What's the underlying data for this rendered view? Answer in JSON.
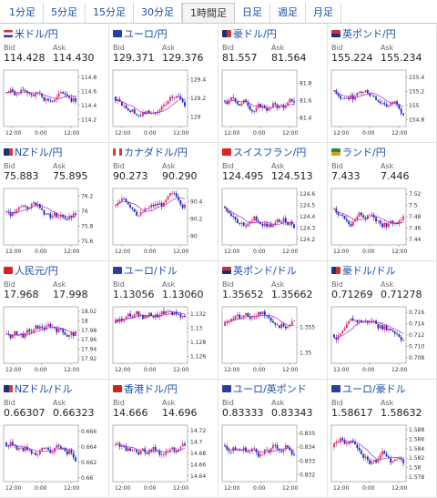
{
  "timeframe_tabs": [
    {
      "label": "1分足"
    },
    {
      "label": "5分足"
    },
    {
      "label": "15分足"
    },
    {
      "label": "30分足"
    },
    {
      "label": "1時間足",
      "active": true
    },
    {
      "label": "日足"
    },
    {
      "label": "週足"
    },
    {
      "label": "月足"
    }
  ],
  "labels": {
    "bid": "Bid",
    "ask": "Ask"
  },
  "colors": {
    "link": "#1a4fa8",
    "up_candle": "#e0306a",
    "down_candle": "#1a2ac0",
    "moving_average": "#b020d0"
  },
  "pairs": [
    {
      "name": "米ドル/円",
      "flag": "us",
      "bid": "114.428",
      "ask": "114.430"
    },
    {
      "name": "ユーロ/円",
      "flag": "eu",
      "bid": "129.371",
      "ask": "129.376"
    },
    {
      "name": "豪ドル/円",
      "flag": "au",
      "bid": "81.557",
      "ask": "81.564"
    },
    {
      "name": "英ポンド/円",
      "flag": "gb",
      "bid": "155.224",
      "ask": "155.234"
    },
    {
      "name": "NZドル/円",
      "flag": "nz",
      "bid": "75.883",
      "ask": "75.895"
    },
    {
      "name": "カナダドル/円",
      "flag": "ca",
      "bid": "90.273",
      "ask": "90.290"
    },
    {
      "name": "スイスフラン/円",
      "flag": "ch",
      "bid": "124.495",
      "ask": "124.513"
    },
    {
      "name": "ランド/円",
      "flag": "za",
      "bid": "7.433",
      "ask": "7.446"
    },
    {
      "name": "人民元/円",
      "flag": "cn",
      "bid": "17.968",
      "ask": "17.998"
    },
    {
      "name": "ユーロ/ドル",
      "flag": "eu",
      "bid": "1.13056",
      "ask": "1.13060"
    },
    {
      "name": "英ポンド/ドル",
      "flag": "gb",
      "bid": "1.35652",
      "ask": "1.35662"
    },
    {
      "name": "豪ドル/ドル",
      "flag": "au",
      "bid": "0.71269",
      "ask": "0.71278"
    },
    {
      "name": "NZドル/ドル",
      "flag": "nz",
      "bid": "0.66307",
      "ask": "0.66323"
    },
    {
      "name": "香港ドル/円",
      "flag": "hk",
      "bid": "14.666",
      "ask": "14.696"
    },
    {
      "name": "ユーロ/英ポンド",
      "flag": "eu",
      "bid": "0.83333",
      "ask": "0.83343"
    },
    {
      "name": "ユーロ/豪ドル",
      "flag": "eu",
      "bid": "1.58617",
      "ask": "1.58632"
    }
  ],
  "chart_data": [
    {
      "type": "candlestick",
      "pair": "米ドル/円",
      "x_ticks": [
        "12:00",
        "0:00",
        "12:00"
      ],
      "y_ticks": [
        "114.8",
        "114.6",
        "114.4",
        "114.2"
      ],
      "ylim": [
        114.1,
        114.9
      ]
    },
    {
      "type": "candlestick",
      "pair": "ユーロ/円",
      "x_ticks": [
        "12:00",
        "0:00",
        "12:00"
      ],
      "y_ticks": [
        "129.4",
        "129.2",
        "129"
      ],
      "ylim": [
        128.9,
        129.5
      ]
    },
    {
      "type": "candlestick",
      "pair": "豪ドル/円",
      "x_ticks": [
        "12:00",
        "0:00",
        "12:00"
      ],
      "y_ticks": [
        "81.8",
        "81.6",
        "81.4"
      ],
      "ylim": [
        81.3,
        81.95
      ]
    },
    {
      "type": "candlestick",
      "pair": "英ポンド/円",
      "x_ticks": [
        "12:00",
        "0:00",
        "12:00"
      ],
      "y_ticks": [
        "155.4",
        "155.2",
        "155",
        "154.8"
      ],
      "ylim": [
        154.7,
        155.5
      ]
    },
    {
      "type": "candlestick",
      "pair": "NZドル/円",
      "x_ticks": [
        "12:00",
        "0:00",
        "12:00"
      ],
      "y_ticks": [
        "76.2",
        "76",
        "75.8",
        "75.6"
      ],
      "ylim": [
        75.55,
        76.3
      ]
    },
    {
      "type": "candlestick",
      "pair": "カナダドル/円",
      "x_ticks": [
        "12:00",
        "0:00",
        "12:00"
      ],
      "y_ticks": [
        "90.4",
        "90.2",
        "90"
      ],
      "ylim": [
        89.9,
        90.55
      ]
    },
    {
      "type": "candlestick",
      "pair": "スイスフラン/円",
      "x_ticks": [
        "12:00",
        "0:00",
        "12:00"
      ],
      "y_ticks": [
        "124.6",
        "124.5",
        "124.4",
        "124.3",
        "124.2"
      ],
      "ylim": [
        124.15,
        124.65
      ]
    },
    {
      "type": "candlestick",
      "pair": "ランド/円",
      "x_ticks": [
        "12:00",
        "0:00",
        "12:00"
      ],
      "y_ticks": [
        "7.52",
        "7.5",
        "7.48",
        "7.46",
        "7.44"
      ],
      "ylim": [
        7.43,
        7.53
      ]
    },
    {
      "type": "candlestick",
      "pair": "人民元/円",
      "x_ticks": [
        "12:00",
        "0:00",
        "12:00"
      ],
      "y_ticks": [
        "18.02",
        "18",
        "17.98",
        "17.96",
        "17.94",
        "17.92"
      ],
      "ylim": [
        17.91,
        18.03
      ]
    },
    {
      "type": "candlestick",
      "pair": "ユーロ/ドル",
      "x_ticks": [
        "12:00",
        "0:00",
        "12:00"
      ],
      "y_ticks": [
        "1.132",
        "1.13",
        "1.128",
        "1.126"
      ],
      "ylim": [
        1.125,
        1.133
      ]
    },
    {
      "type": "candlestick",
      "pair": "英ポンド/ドル",
      "x_ticks": [
        "12:00",
        "0:00",
        "12:00"
      ],
      "y_ticks": [
        "1.355",
        "1.35"
      ],
      "ylim": [
        1.348,
        1.359
      ]
    },
    {
      "type": "candlestick",
      "pair": "豪ドル/ドル",
      "x_ticks": [
        "12:00",
        "0:00",
        "12:00"
      ],
      "y_ticks": [
        "0.716",
        "0.714",
        "0.712",
        "0.710",
        "0.708"
      ],
      "ylim": [
        0.707,
        0.717
      ]
    },
    {
      "type": "candlestick",
      "pair": "NZドル/ドル",
      "x_ticks": [
        "12:00",
        "0:00",
        "12:00"
      ],
      "y_ticks": [
        "0.666",
        "0.664",
        "0.662",
        "0.66"
      ],
      "ylim": [
        0.6595,
        0.6668
      ]
    },
    {
      "type": "candlestick",
      "pair": "香港ドル/円",
      "x_ticks": [
        "12:00",
        "0:00",
        "12:00"
      ],
      "y_ticks": [
        "14.72",
        "14.7",
        "14.68",
        "14.66",
        "14.64"
      ],
      "ylim": [
        14.63,
        14.73
      ]
    },
    {
      "type": "candlestick",
      "pair": "ユーロ/英ポンド",
      "x_ticks": [
        "12:00",
        "0:00",
        "12:00"
      ],
      "y_ticks": [
        "0.835",
        "0.834",
        "0.833",
        "0.832"
      ],
      "ylim": [
        0.8315,
        0.8356
      ]
    },
    {
      "type": "candlestick",
      "pair": "ユーロ/豪ドル",
      "x_ticks": [
        "12:00",
        "0:00",
        "12:00"
      ],
      "y_ticks": [
        "1.588",
        "1.586",
        "1.584",
        "1.582",
        "1.58",
        "1.578"
      ],
      "ylim": [
        1.577,
        1.589
      ]
    }
  ]
}
